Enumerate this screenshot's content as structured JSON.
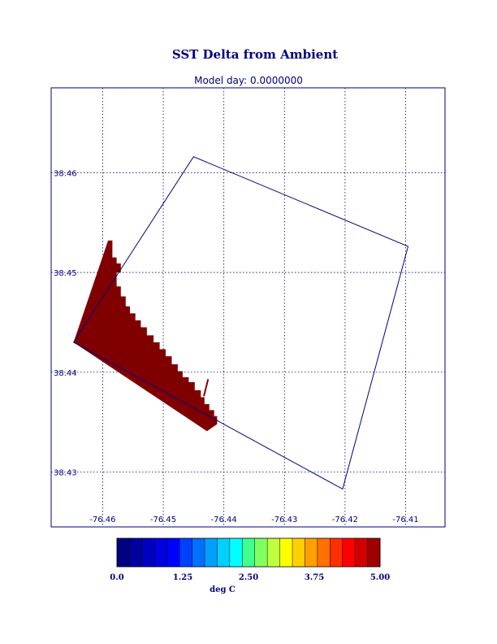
{
  "chart_data": {
    "type": "heatmap",
    "title": "SST Delta from Ambient",
    "subtitle": "Model day: 0.0000000",
    "xlabel": "",
    "ylabel": "",
    "xlim": [
      -76.4685,
      -76.4035
    ],
    "ylim": [
      38.4245,
      38.4685
    ],
    "x_ticks": [
      -76.46,
      -76.45,
      -76.44,
      -76.43,
      -76.42,
      -76.41
    ],
    "x_tick_labels": [
      "-76.46",
      "-76.45",
      "-76.44",
      "-76.43",
      "-76.42",
      "-76.41"
    ],
    "y_ticks": [
      38.43,
      38.44,
      38.45,
      38.46
    ],
    "y_tick_labels": [
      "38.43",
      "38.44",
      "38.45",
      "38.46"
    ],
    "grid": true,
    "domain_outline": [
      [
        -76.445,
        38.4616
      ],
      [
        -76.4096,
        38.4526
      ],
      [
        -76.4204,
        38.4283
      ],
      [
        -76.4648,
        38.443
      ]
    ],
    "warm_plume": {
      "value_deg_c": 5.0,
      "color": "#800000",
      "boundary": [
        [
          -76.4648,
          38.443
        ],
        [
          -76.4591,
          38.4532
        ],
        [
          -76.4584,
          38.4532
        ],
        [
          -76.4584,
          38.4515
        ],
        [
          -76.4577,
          38.4515
        ],
        [
          -76.4577,
          38.4509
        ],
        [
          -76.457,
          38.4509
        ],
        [
          -76.457,
          38.45
        ],
        [
          -76.4577,
          38.45
        ],
        [
          -76.4577,
          38.4486
        ],
        [
          -76.457,
          38.4486
        ],
        [
          -76.457,
          38.4476
        ],
        [
          -76.4562,
          38.4476
        ],
        [
          -76.4562,
          38.4466
        ],
        [
          -76.4555,
          38.4466
        ],
        [
          -76.4555,
          38.4459
        ],
        [
          -76.4546,
          38.4459
        ],
        [
          -76.4546,
          38.4452
        ],
        [
          -76.4537,
          38.4452
        ],
        [
          -76.4537,
          38.4445
        ],
        [
          -76.4527,
          38.4445
        ],
        [
          -76.4527,
          38.4437
        ],
        [
          -76.4516,
          38.4437
        ],
        [
          -76.4516,
          38.443
        ],
        [
          -76.4506,
          38.443
        ],
        [
          -76.4506,
          38.4423
        ],
        [
          -76.4496,
          38.4423
        ],
        [
          -76.4496,
          38.4416
        ],
        [
          -76.4486,
          38.4416
        ],
        [
          -76.4486,
          38.4408
        ],
        [
          -76.4476,
          38.4408
        ],
        [
          -76.4476,
          38.4401
        ],
        [
          -76.4468,
          38.4401
        ],
        [
          -76.4468,
          38.4395
        ],
        [
          -76.4458,
          38.4395
        ],
        [
          -76.4458,
          38.439
        ],
        [
          -76.4448,
          38.439
        ],
        [
          -76.4448,
          38.4382
        ],
        [
          -76.4438,
          38.4382
        ],
        [
          -76.4438,
          38.4375
        ],
        [
          -76.4432,
          38.4375
        ],
        [
          -76.4432,
          38.4368
        ],
        [
          -76.4424,
          38.4368
        ],
        [
          -76.4424,
          38.4362
        ],
        [
          -76.4416,
          38.4362
        ],
        [
          -76.4416,
          38.4356
        ],
        [
          -76.4411,
          38.4356
        ],
        [
          -76.4411,
          38.4348
        ],
        [
          -76.4428,
          38.4341
        ],
        [
          -76.4648,
          38.443
        ]
      ],
      "outfall_line": [
        [
          -76.4433,
          38.4376
        ],
        [
          -76.4426,
          38.4393
        ]
      ]
    },
    "colorbar": {
      "label": "deg C",
      "min": 0.0,
      "max": 5.0,
      "tick_labels": [
        "0.0",
        "1.25",
        "2.50",
        "3.75",
        "5.00"
      ],
      "colors": [
        "#000080",
        "#00009f",
        "#0000c0",
        "#0000e0",
        "#0000ff",
        "#0040ff",
        "#0070ff",
        "#00a0ff",
        "#00d0ff",
        "#00ffff",
        "#40ff90",
        "#80ff60",
        "#c0ff40",
        "#ffff00",
        "#ffd000",
        "#ffa000",
        "#ff7000",
        "#ff3000",
        "#ff0000",
        "#d00000",
        "#a00000"
      ]
    }
  }
}
